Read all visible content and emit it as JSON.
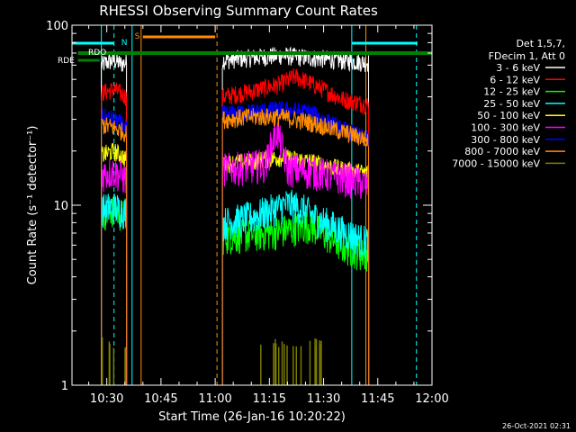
{
  "chart_data": {
    "type": "line",
    "title": "RHESSI Observing Summary Count Rates",
    "xlabel": "Start Time (26-Jan-16 10:20:22)",
    "ylabel": "Count Rate (s⁻¹ detector⁻¹)",
    "yscale": "log",
    "ylim": [
      1,
      100
    ],
    "xlim_minutes": [
      20.37,
      120
    ],
    "x_ticks": [
      {
        "m": 30,
        "label": "10:30"
      },
      {
        "m": 45,
        "label": "10:45"
      },
      {
        "m": 60,
        "label": "11:00"
      },
      {
        "m": 75,
        "label": "11:15"
      },
      {
        "m": 90,
        "label": "11:30"
      },
      {
        "m": 105,
        "label": "11:45"
      },
      {
        "m": 120,
        "label": "12:00"
      }
    ],
    "y_ticks": [
      {
        "v": 1,
        "label": "1"
      },
      {
        "v": 10,
        "label": "10"
      },
      {
        "v": 100,
        "label": "100"
      }
    ],
    "legend_header": [
      "Det 1,5,7,",
      "FDecim 1, Att 0"
    ],
    "footer_date": "26-Oct-2021 02:31",
    "flag_labels": {
      "N": "N",
      "S": "S",
      "RD1": "RDO",
      "RD2": "RDE"
    },
    "intervals": [
      [
        28.5,
        35.5
      ],
      [
        62,
        102.5
      ]
    ],
    "flag_bars": {
      "N": [
        [
          20.37,
          32
        ],
        [
          97.8,
          116
        ]
      ],
      "S": [
        [
          40,
          60
        ]
      ],
      "RD1": [
        [
          22,
          120
        ]
      ],
      "RD2": [
        [
          22,
          28
        ]
      ]
    },
    "vlines": [
      {
        "m": 28.5,
        "color": "#00ffff",
        "style": "solid"
      },
      {
        "m": 32,
        "color": "#00ffff",
        "style": "dashed"
      },
      {
        "m": 37,
        "color": "#00ffff",
        "style": "solid"
      },
      {
        "m": 39.5,
        "color": "#ff8c00",
        "style": "solid"
      },
      {
        "m": 60.5,
        "color": "#ff8c00",
        "style": "dashed"
      },
      {
        "m": 97.8,
        "color": "#00ffff",
        "style": "solid"
      },
      {
        "m": 101.7,
        "color": "#ff8c00",
        "style": "solid"
      },
      {
        "m": 115.7,
        "color": "#00ffff",
        "style": "dashed"
      }
    ],
    "series": [
      {
        "name": "3 - 6 keV",
        "color": "#ffffff",
        "segments": [
          {
            "x": [
              28.5,
              30,
              32,
              34,
              35.5
            ],
            "y": [
              60,
              62,
              64,
              61,
              62
            ]
          },
          {
            "x": [
              62,
              70,
              78,
              86,
              94,
              102.5
            ],
            "y": [
              64,
              66,
              68,
              66,
              64,
              62
            ]
          }
        ]
      },
      {
        "name": "6 - 12 keV",
        "color": "#ff0000",
        "segments": [
          {
            "x": [
              28.5,
              32,
              35.5
            ],
            "y": [
              42,
              44,
              40
            ]
          },
          {
            "x": [
              62,
              70,
              78,
              82,
              86,
              90,
              95,
              102.5
            ],
            "y": [
              40,
              43,
              47,
              52,
              48,
              44,
              39,
              36
            ]
          }
        ]
      },
      {
        "name": "12 - 25 keV",
        "color": "#00ff00",
        "segments": [
          {
            "x": [
              28.5,
              32,
              35.5
            ],
            "y": [
              9.0,
              9.5,
              8.5
            ]
          },
          {
            "x": [
              62,
              70,
              78,
              86,
              90,
              95,
              102.5
            ],
            "y": [
              6.7,
              6.9,
              7.2,
              7.8,
              7.0,
              6.0,
              5.2
            ]
          }
        ]
      },
      {
        "name": "25 - 50 keV",
        "color": "#00ffff",
        "segments": [
          {
            "x": [
              28.5,
              32,
              35.5
            ],
            "y": [
              9.5,
              9.8,
              9.2
            ]
          },
          {
            "x": [
              62,
              70,
              76,
              80,
              84,
              88,
              95,
              102.5
            ],
            "y": [
              8.0,
              8.6,
              9.5,
              10.2,
              9.6,
              8.5,
              7.2,
              6.2
            ]
          }
        ]
      },
      {
        "name": "50 - 100 keV",
        "color": "#ffff00",
        "segments": [
          {
            "x": [
              28.5,
              32,
              35.5
            ],
            "y": [
              19,
              20,
              18
            ]
          },
          {
            "x": [
              62,
              70,
              78,
              86,
              94,
              102.5
            ],
            "y": [
              17,
              17.5,
              18.5,
              17.5,
              16,
              15
            ]
          }
        ]
      },
      {
        "name": "100 - 300 keV",
        "color": "#ff00ff",
        "segments": [
          {
            "x": [
              28.5,
              32,
              35.5
            ],
            "y": [
              15,
              15.5,
              14
            ]
          },
          {
            "x": [
              62,
              70,
              74,
              77,
              80,
              86,
              94,
              102.5
            ],
            "y": [
              16,
              16.5,
              17,
              26,
              16,
              15.5,
              14.5,
              13
            ]
          }
        ]
      },
      {
        "name": "300 - 800 keV",
        "color": "#0000ff",
        "segments": [
          {
            "x": [
              28.5,
              32,
              35.5
            ],
            "y": [
              31,
              30,
              27
            ]
          },
          {
            "x": [
              62,
              70,
              78,
              86,
              94,
              102.5
            ],
            "y": [
              32,
              33,
              34,
              33,
              27,
              23
            ]
          }
        ]
      },
      {
        "name": "800 - 7000 keV",
        "color": "#ff8c00",
        "segments": [
          {
            "x": [
              28.5,
              32,
              35.5
            ],
            "y": [
              28,
              27,
              25
            ]
          },
          {
            "x": [
              62,
              70,
              78,
              86,
              94,
              102.5
            ],
            "y": [
              30,
              31,
              31,
              29,
              26,
              23
            ]
          }
        ]
      },
      {
        "name": "7000 - 15000 keV",
        "color": "#808000",
        "segments": [
          {
            "x": [
              28.5,
              35.5
            ],
            "y": [
              1.6,
              1.6
            ]
          },
          {
            "x": [
              72,
              90
            ],
            "y": [
              1.5,
              1.5
            ]
          }
        ]
      }
    ]
  }
}
